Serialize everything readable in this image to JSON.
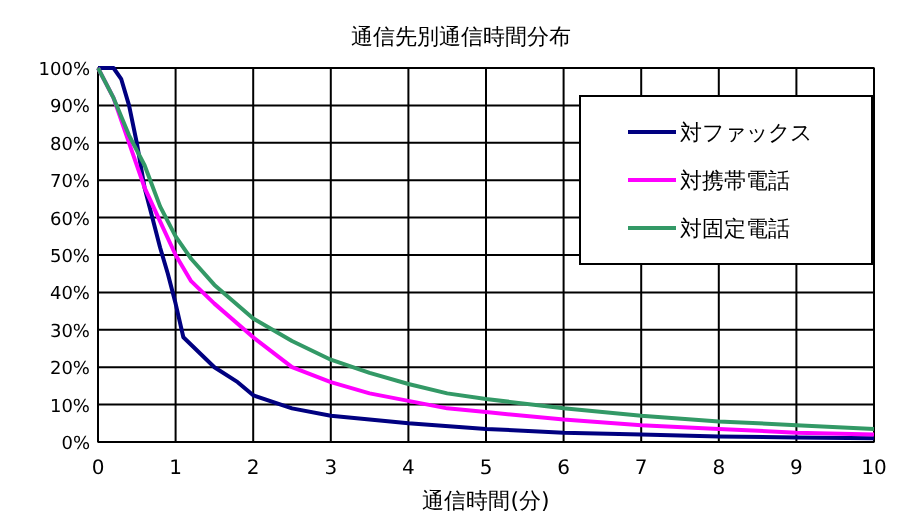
{
  "chart_data": {
    "type": "line",
    "title": "通信先別通信時間分布",
    "xlabel": "通信時間(分)",
    "xlim": [
      0,
      10
    ],
    "xticks": [
      0,
      1,
      2,
      3,
      4,
      5,
      6,
      7,
      8,
      9,
      10
    ],
    "ylim": [
      0,
      100
    ],
    "yticks": [
      {
        "value": 0,
        "label": "0%"
      },
      {
        "value": 10,
        "label": "10%"
      },
      {
        "value": 20,
        "label": "20%"
      },
      {
        "value": 30,
        "label": "30%"
      },
      {
        "value": 40,
        "label": "40%"
      },
      {
        "value": 50,
        "label": "50%"
      },
      {
        "value": 60,
        "label": "60%"
      },
      {
        "value": 70,
        "label": "70%"
      },
      {
        "value": 80,
        "label": "80%"
      },
      {
        "value": 90,
        "label": "90%"
      },
      {
        "value": 100,
        "label": "100%"
      }
    ],
    "grid": true,
    "legend": "top right",
    "marker": "none",
    "line_style": "solid",
    "series": [
      {
        "name": "対ファックス",
        "color": "#000080",
        "x": [
          0,
          0.2,
          0.3,
          0.4,
          0.5,
          0.6,
          0.7,
          0.8,
          0.9,
          1.0,
          1.1,
          1.3,
          1.5,
          1.8,
          2.0,
          2.5,
          3,
          3.5,
          4,
          5,
          6,
          7,
          8,
          9,
          10
        ],
        "values": [
          100,
          100,
          97,
          90,
          80,
          68,
          60,
          52,
          45,
          37,
          28,
          24,
          20,
          16,
          12.5,
          9,
          7,
          6,
          5,
          3.5,
          2.5,
          2,
          1.5,
          1.2,
          1
        ]
      },
      {
        "name": "対携帯電話",
        "color": "#ff00ff",
        "x": [
          0,
          0.2,
          0.4,
          0.6,
          0.8,
          1.0,
          1.2,
          1.5,
          2,
          2.5,
          3,
          3.5,
          4,
          4.5,
          5,
          6,
          7,
          8,
          9,
          10
        ],
        "values": [
          100,
          92,
          80,
          68,
          59,
          50,
          43,
          37,
          28,
          20,
          16,
          13,
          11,
          9,
          8,
          6,
          4.5,
          3.5,
          2.5,
          2
        ]
      },
      {
        "name": "対固定電話",
        "color": "#339966",
        "x": [
          0,
          0.2,
          0.4,
          0.6,
          0.8,
          1.0,
          1.2,
          1.5,
          2,
          2.5,
          3,
          3.5,
          4,
          4.5,
          5,
          6,
          7,
          8,
          9,
          10
        ],
        "values": [
          100,
          92,
          82,
          74,
          63,
          55,
          49,
          42,
          33,
          27,
          22,
          18.5,
          15.5,
          13,
          11.5,
          9,
          7,
          5.5,
          4.5,
          3.5
        ]
      }
    ]
  }
}
